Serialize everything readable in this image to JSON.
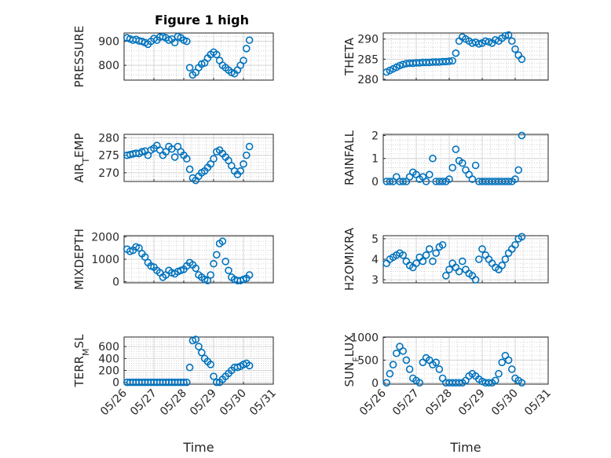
{
  "figure": {
    "title": "Figure 1 high",
    "marker_color": "#0072BD"
  },
  "chart_data": [
    {
      "type": "scatter",
      "ylabel": "PRESSURE",
      "xlabel": "",
      "ylim": [
        738,
        935
      ],
      "yticks": [
        800,
        900
      ],
      "xlim": [
        "05/26",
        "05/31"
      ],
      "x": [
        0.1,
        0.2,
        0.3,
        0.4,
        0.5,
        0.6,
        0.7,
        0.8,
        0.9,
        1.0,
        1.1,
        1.2,
        1.3,
        1.4,
        1.5,
        1.6,
        1.7,
        1.8,
        1.9,
        2.0,
        2.1,
        2.2,
        2.3,
        2.4,
        2.5,
        2.6,
        2.7,
        2.8,
        2.9,
        3.0,
        3.1,
        3.2,
        3.3,
        3.4,
        3.5,
        3.6,
        3.7,
        3.8,
        3.9,
        4.0,
        4.1,
        4.2
      ],
      "y": [
        915,
        910,
        905,
        908,
        902,
        900,
        895,
        888,
        900,
        912,
        905,
        918,
        920,
        915,
        905,
        910,
        895,
        920,
        915,
        905,
        900,
        790,
        760,
        770,
        790,
        805,
        810,
        830,
        845,
        855,
        845,
        820,
        800,
        790,
        780,
        770,
        765,
        780,
        800,
        820,
        870,
        905
      ]
    },
    {
      "type": "scatter",
      "ylabel": "THETA",
      "xlabel": "",
      "ylim": [
        279.8,
        291.5
      ],
      "yticks": [
        280,
        285,
        290
      ],
      "xlim": [
        "05/26",
        "05/31"
      ],
      "x": [
        0.1,
        0.2,
        0.3,
        0.4,
        0.5,
        0.6,
        0.7,
        0.8,
        0.9,
        1.0,
        1.1,
        1.2,
        1.3,
        1.4,
        1.5,
        1.6,
        1.7,
        1.8,
        1.9,
        2.0,
        2.1,
        2.2,
        2.3,
        2.4,
        2.5,
        2.6,
        2.7,
        2.8,
        2.9,
        3.0,
        3.1,
        3.2,
        3.3,
        3.4,
        3.5,
        3.6,
        3.7,
        3.8,
        3.9,
        4.0,
        4.1,
        4.2
      ],
      "y": [
        281.8,
        282.2,
        282.6,
        283.0,
        283.4,
        283.7,
        283.9,
        284.0,
        284.0,
        284.1,
        284.1,
        284.2,
        284.2,
        284.2,
        284.3,
        284.3,
        284.3,
        284.4,
        284.4,
        284.5,
        284.6,
        286.5,
        289.5,
        290.5,
        290.0,
        289.5,
        289.0,
        289.2,
        288.8,
        289.0,
        289.5,
        289.3,
        289.0,
        289.8,
        289.5,
        290.2,
        290.8,
        291.0,
        289.5,
        287.5,
        286.0,
        285.0
      ]
    },
    {
      "type": "scatter",
      "ylabel": "AIR_TEMP",
      "xlabel": "",
      "ylim": [
        267.5,
        281
      ],
      "yticks": [
        270,
        275,
        280
      ],
      "xlim": [
        "05/26",
        "05/31"
      ],
      "x": [
        0.1,
        0.2,
        0.3,
        0.4,
        0.5,
        0.6,
        0.7,
        0.8,
        0.9,
        1.0,
        1.1,
        1.2,
        1.3,
        1.4,
        1.5,
        1.6,
        1.7,
        1.8,
        1.9,
        2.0,
        2.1,
        2.2,
        2.3,
        2.4,
        2.5,
        2.6,
        2.7,
        2.8,
        2.9,
        3.0,
        3.1,
        3.2,
        3.3,
        3.4,
        3.5,
        3.6,
        3.7,
        3.8,
        3.9,
        4.0,
        4.1,
        4.2
      ],
      "y": [
        275.0,
        275.2,
        275.4,
        275.6,
        275.5,
        276.0,
        276.2,
        275.0,
        276.5,
        277.0,
        277.8,
        276.5,
        275.0,
        276.0,
        277.5,
        276.8,
        274.5,
        277.5,
        276.0,
        275.0,
        274.0,
        271.0,
        268.5,
        267.8,
        269.0,
        270.0,
        270.5,
        271.5,
        272.5,
        274.0,
        276.0,
        276.5,
        275.5,
        274.5,
        273.5,
        272.0,
        270.5,
        269.5,
        270.5,
        272.5,
        275.0,
        277.5
      ]
    },
    {
      "type": "scatter",
      "ylabel": "RAINFALL",
      "xlabel": "",
      "ylim": [
        0,
        2.05
      ],
      "yticks": [
        0,
        1,
        2
      ],
      "xlim": [
        "05/26",
        "05/31"
      ],
      "x": [
        0.1,
        0.2,
        0.3,
        0.4,
        0.5,
        0.6,
        0.7,
        0.8,
        0.9,
        1.0,
        1.1,
        1.2,
        1.3,
        1.4,
        1.5,
        1.6,
        1.7,
        1.8,
        1.9,
        2.0,
        2.1,
        2.2,
        2.3,
        2.4,
        2.5,
        2.6,
        2.7,
        2.8,
        2.9,
        3.0,
        3.1,
        3.2,
        3.3,
        3.4,
        3.5,
        3.6,
        3.7,
        3.8,
        3.9,
        4.0,
        4.1,
        4.2
      ],
      "y": [
        0,
        0,
        0,
        0.2,
        0,
        0,
        0,
        0.2,
        0.4,
        0.3,
        0.1,
        0.2,
        0,
        0.3,
        1.0,
        0,
        0,
        0,
        0,
        0.1,
        0.6,
        1.4,
        0.9,
        0.8,
        0.5,
        0.3,
        0.1,
        0.7,
        0,
        0,
        0,
        0,
        0,
        0,
        0,
        0,
        0,
        0,
        0,
        0.1,
        0.5,
        2.0
      ]
    },
    {
      "type": "scatter",
      "ylabel": "MIXDEPTH",
      "xlabel": "",
      "ylim": [
        -50,
        2050
      ],
      "yticks": [
        0,
        1000,
        2000
      ],
      "xlim": [
        "05/26",
        "05/31"
      ],
      "x": [
        0.1,
        0.2,
        0.3,
        0.4,
        0.5,
        0.6,
        0.7,
        0.8,
        0.9,
        1.0,
        1.1,
        1.2,
        1.3,
        1.4,
        1.5,
        1.6,
        1.7,
        1.8,
        1.9,
        2.0,
        2.1,
        2.2,
        2.3,
        2.4,
        2.5,
        2.6,
        2.7,
        2.8,
        2.9,
        3.0,
        3.1,
        3.2,
        3.3,
        3.4,
        3.5,
        3.6,
        3.7,
        3.8,
        3.9,
        4.0,
        4.1,
        4.2
      ],
      "y": [
        1450,
        1350,
        1400,
        1550,
        1500,
        1250,
        1100,
        850,
        700,
        650,
        500,
        400,
        200,
        300,
        500,
        400,
        350,
        450,
        500,
        550,
        700,
        850,
        750,
        600,
        300,
        200,
        100,
        50,
        300,
        800,
        1200,
        1700,
        1800,
        900,
        500,
        200,
        100,
        50,
        50,
        100,
        150,
        300
      ]
    },
    {
      "type": "scatter",
      "ylabel": "H2OMIXRA",
      "xlabel": "",
      "ylim": [
        2.85,
        5.15
      ],
      "yticks": [
        3,
        4,
        5
      ],
      "xlim": [
        "05/26",
        "05/31"
      ],
      "x": [
        0.1,
        0.2,
        0.3,
        0.4,
        0.5,
        0.6,
        0.7,
        0.8,
        0.9,
        1.0,
        1.1,
        1.2,
        1.3,
        1.4,
        1.5,
        1.6,
        1.7,
        1.8,
        1.9,
        2.0,
        2.1,
        2.2,
        2.3,
        2.4,
        2.5,
        2.6,
        2.7,
        2.8,
        2.9,
        3.0,
        3.1,
        3.2,
        3.3,
        3.4,
        3.5,
        3.6,
        3.7,
        3.8,
        3.9,
        4.0,
        4.1,
        4.2
      ],
      "y": [
        3.8,
        4.0,
        4.1,
        4.2,
        4.3,
        4.2,
        3.9,
        3.7,
        3.6,
        3.8,
        4.1,
        3.9,
        4.2,
        4.5,
        3.9,
        4.3,
        4.6,
        4.7,
        3.2,
        3.5,
        3.8,
        3.6,
        3.4,
        3.9,
        3.5,
        3.3,
        3.2,
        3.0,
        4.0,
        4.5,
        4.2,
        4.0,
        3.8,
        3.6,
        3.5,
        3.7,
        4.0,
        4.3,
        4.5,
        4.7,
        5.0,
        5.1
      ]
    },
    {
      "type": "scatter",
      "ylabel": "TERR_MSL",
      "xlabel": "Time",
      "ylim": [
        -30,
        760
      ],
      "yticks": [
        0,
        200,
        400,
        600
      ],
      "xlim": [
        "05/26",
        "05/31"
      ],
      "xticks": [
        "05/26",
        "05/27",
        "05/28",
        "05/29",
        "05/30",
        "05/31"
      ],
      "x": [
        0.1,
        0.2,
        0.3,
        0.4,
        0.5,
        0.6,
        0.7,
        0.8,
        0.9,
        1.0,
        1.1,
        1.2,
        1.3,
        1.4,
        1.5,
        1.6,
        1.7,
        1.8,
        1.9,
        2.0,
        2.1,
        2.2,
        2.3,
        2.4,
        2.5,
        2.6,
        2.7,
        2.8,
        2.9,
        3.0,
        3.1,
        3.2,
        3.3,
        3.4,
        3.5,
        3.6,
        3.7,
        3.8,
        3.9,
        4.0,
        4.1,
        4.2
      ],
      "y": [
        0,
        0,
        0,
        0,
        0,
        0,
        0,
        0,
        0,
        0,
        0,
        0,
        0,
        0,
        0,
        0,
        0,
        0,
        0,
        0,
        0,
        250,
        700,
        720,
        600,
        500,
        400,
        350,
        300,
        100,
        0,
        0,
        50,
        100,
        150,
        200,
        250,
        250,
        270,
        300,
        320,
        280
      ]
    },
    {
      "type": "scatter",
      "ylabel": "SUN_FLUX",
      "xlabel": "Time",
      "ylim": [
        -30,
        1010
      ],
      "yticks": [
        0,
        500,
        1000
      ],
      "xlim": [
        "05/26",
        "05/31"
      ],
      "xticks": [
        "05/26",
        "05/27",
        "05/28",
        "05/29",
        "05/30",
        "05/31"
      ],
      "x": [
        0.1,
        0.2,
        0.3,
        0.4,
        0.5,
        0.6,
        0.7,
        0.8,
        0.9,
        1.0,
        1.1,
        1.2,
        1.3,
        1.4,
        1.5,
        1.6,
        1.7,
        1.8,
        1.9,
        2.0,
        2.1,
        2.2,
        2.3,
        2.4,
        2.5,
        2.6,
        2.7,
        2.8,
        2.9,
        3.0,
        3.1,
        3.2,
        3.3,
        3.4,
        3.5,
        3.6,
        3.7,
        3.8,
        3.9,
        4.0,
        4.1,
        4.2
      ],
      "y": [
        0,
        200,
        400,
        650,
        800,
        700,
        500,
        300,
        100,
        50,
        0,
        450,
        550,
        500,
        400,
        450,
        300,
        100,
        0,
        0,
        0,
        0,
        0,
        0,
        50,
        150,
        200,
        150,
        80,
        30,
        0,
        0,
        0,
        50,
        200,
        450,
        600,
        500,
        300,
        100,
        50,
        0
      ]
    }
  ]
}
